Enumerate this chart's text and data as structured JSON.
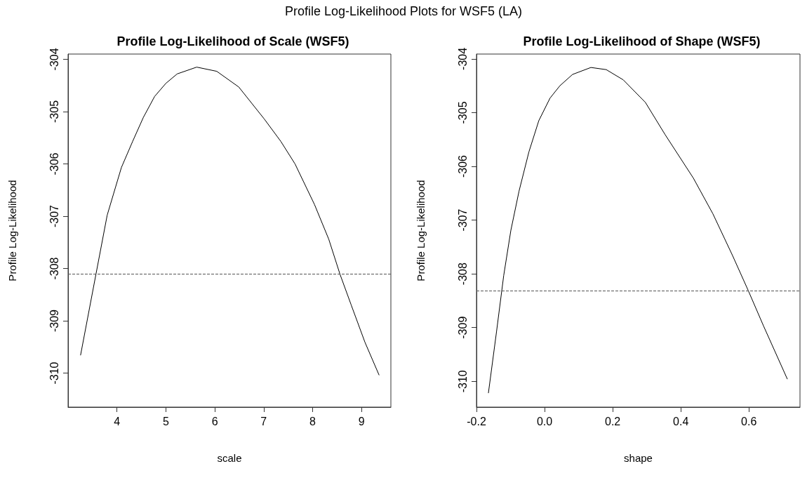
{
  "chart_data": [
    {
      "type": "line",
      "title": "Profile Log-Likelihood of Scale (WSF5)",
      "xlabel": "scale",
      "ylabel": "Profile Log-Likelihood",
      "annotations": [
        "Profile Log-Likelihood Plots for WSF5 (LA)"
      ],
      "x": [
        3.255,
        3.57,
        3.8,
        4.09,
        4.32,
        4.54,
        4.77,
        5.0,
        5.23,
        5.63,
        6.04,
        6.49,
        7.01,
        7.35,
        7.64,
        8.04,
        8.33,
        8.56,
        8.79,
        9.07,
        9.36
      ],
      "series": [
        {
          "color": "#000000",
          "values": [
            -309.66,
            -308.11,
            -306.98,
            -306.07,
            -305.57,
            -305.11,
            -304.71,
            -304.46,
            -304.28,
            -304.15,
            -304.23,
            -304.53,
            -305.14,
            -305.57,
            -306.0,
            -306.78,
            -307.44,
            -308.11,
            -308.7,
            -309.41,
            -310.04
          ]
        }
      ],
      "xlim": [
        3.0,
        9.6
      ],
      "xticks": [
        4,
        5,
        6,
        7,
        8,
        9
      ],
      "ylim": [
        -310.65,
        -303.9
      ],
      "yticks": [
        -310,
        -309,
        -308,
        -307,
        -306,
        -305,
        -304
      ],
      "ref_lines": [
        {
          "axis": "y",
          "value": -308.11,
          "label": null,
          "color": "#555555",
          "line_style": "dashed"
        }
      ],
      "grid": false,
      "marker": "none",
      "line_style": "solid"
    },
    {
      "type": "line",
      "title": "Profile Log-Likelihood of Shape (WSF5)",
      "xlabel": "shape",
      "ylabel": "Profile Log-Likelihood",
      "x": [
        -0.165,
        -0.141,
        -0.12,
        -0.099,
        -0.075,
        -0.046,
        -0.017,
        0.016,
        0.045,
        0.082,
        0.136,
        0.181,
        0.231,
        0.296,
        0.354,
        0.437,
        0.494,
        0.552,
        0.598,
        0.643,
        0.713
      ],
      "series": [
        {
          "color": "#000000",
          "values": [
            -310.22,
            -309.07,
            -308.03,
            -307.19,
            -306.46,
            -305.73,
            -305.15,
            -304.73,
            -304.5,
            -304.29,
            -304.16,
            -304.2,
            -304.39,
            -304.81,
            -305.41,
            -306.22,
            -306.88,
            -307.66,
            -308.31,
            -308.97,
            -309.96
          ]
        }
      ],
      "xlim": [
        -0.2,
        0.75
      ],
      "xticks": [
        {
          "value": -0.2,
          "label": "-0.2"
        },
        {
          "value": 0,
          "label": "0.0"
        },
        {
          "value": 0.2,
          "label": "0.2"
        },
        {
          "value": 0.4,
          "label": "0.4"
        },
        {
          "value": 0.6,
          "label": "0.6"
        }
      ],
      "ylim": [
        -310.48,
        -303.91
      ],
      "yticks": [
        -310,
        -309,
        -308,
        -307,
        -306,
        -305,
        -304
      ],
      "ref_lines": [
        {
          "axis": "y",
          "value": -308.31,
          "label": null,
          "color": "#555555",
          "line_style": "dashed"
        }
      ],
      "grid": false,
      "marker": "none",
      "line_style": "solid"
    }
  ]
}
